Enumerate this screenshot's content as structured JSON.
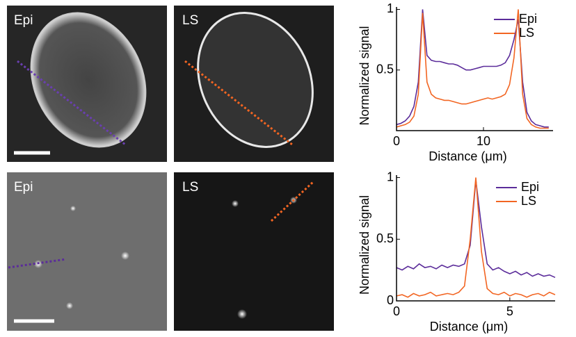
{
  "images": [
    {
      "label": "Epi"
    },
    {
      "label": "LS"
    },
    {
      "label": "Epi"
    },
    {
      "label": "LS"
    }
  ],
  "chart_data": [
    {
      "type": "line",
      "xlabel": "Distance (μm)",
      "ylabel": "Normalized signal",
      "x": [
        0,
        0.5,
        1,
        1.5,
        2,
        2.5,
        3,
        3.5,
        4,
        4.5,
        5,
        5.5,
        6,
        6.5,
        7,
        7.5,
        8,
        8.5,
        9,
        9.5,
        10,
        10.5,
        11,
        11.5,
        12,
        12.5,
        13,
        13.5,
        14,
        14.5,
        15,
        15.5,
        16,
        16.5,
        17,
        17.5
      ],
      "series": [
        {
          "name": "Epi",
          "color": "#5b2c9a",
          "values": [
            0.05,
            0.06,
            0.08,
            0.12,
            0.2,
            0.4,
            1.0,
            0.62,
            0.58,
            0.57,
            0.57,
            0.56,
            0.55,
            0.55,
            0.54,
            0.52,
            0.5,
            0.5,
            0.51,
            0.52,
            0.53,
            0.53,
            0.53,
            0.53,
            0.54,
            0.56,
            0.62,
            0.75,
            0.92,
            0.4,
            0.15,
            0.08,
            0.05,
            0.04,
            0.03,
            0.03
          ]
        },
        {
          "name": "LS",
          "color": "#f26522",
          "values": [
            0.03,
            0.04,
            0.05,
            0.07,
            0.12,
            0.3,
            0.97,
            0.4,
            0.3,
            0.27,
            0.26,
            0.25,
            0.25,
            0.24,
            0.23,
            0.22,
            0.22,
            0.23,
            0.24,
            0.25,
            0.26,
            0.27,
            0.26,
            0.27,
            0.28,
            0.3,
            0.38,
            0.6,
            1.0,
            0.3,
            0.1,
            0.05,
            0.03,
            0.02,
            0.02,
            0.02
          ]
        }
      ],
      "xlim": [
        0,
        18
      ],
      "xticks": [
        0,
        10
      ],
      "ylim": [
        0,
        1.02
      ],
      "yticks": [
        0.5,
        1
      ],
      "legend": "upper right"
    },
    {
      "type": "line",
      "xlabel": "Distance (μm)",
      "ylabel": "Normalized signal",
      "x": [
        0,
        0.25,
        0.5,
        0.75,
        1,
        1.25,
        1.5,
        1.75,
        2,
        2.25,
        2.5,
        2.75,
        3,
        3.25,
        3.5,
        3.75,
        4,
        4.25,
        4.5,
        4.75,
        5,
        5.25,
        5.5,
        5.75,
        6,
        6.25,
        6.5,
        6.75,
        7
      ],
      "series": [
        {
          "name": "Epi",
          "color": "#5b2c9a",
          "values": [
            0.27,
            0.25,
            0.28,
            0.26,
            0.3,
            0.27,
            0.28,
            0.26,
            0.29,
            0.27,
            0.29,
            0.28,
            0.3,
            0.45,
            0.98,
            0.6,
            0.3,
            0.25,
            0.27,
            0.24,
            0.22,
            0.24,
            0.21,
            0.23,
            0.2,
            0.22,
            0.2,
            0.21,
            0.19
          ]
        },
        {
          "name": "LS",
          "color": "#f26522",
          "values": [
            0.04,
            0.05,
            0.03,
            0.06,
            0.04,
            0.05,
            0.07,
            0.04,
            0.05,
            0.06,
            0.05,
            0.07,
            0.12,
            0.5,
            1.0,
            0.4,
            0.1,
            0.06,
            0.05,
            0.07,
            0.04,
            0.06,
            0.05,
            0.03,
            0.05,
            0.06,
            0.04,
            0.07,
            0.05
          ]
        }
      ],
      "xlim": [
        0,
        7
      ],
      "xticks": [
        0,
        5
      ],
      "ylim": [
        0,
        1.02
      ],
      "yticks": [
        0,
        0.5,
        1
      ],
      "legend": "upper right"
    }
  ]
}
